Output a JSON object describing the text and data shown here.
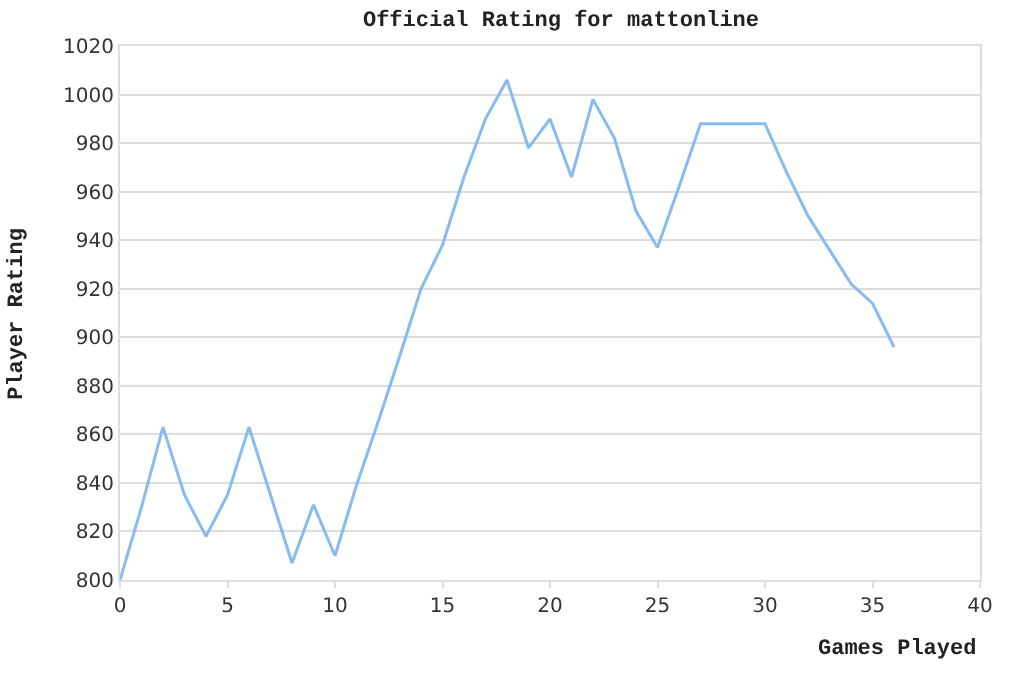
{
  "chart_data": {
    "type": "line",
    "title": "Official Rating for mattonline",
    "xlabel": "Games Played",
    "ylabel": "Player Rating",
    "x": [
      0,
      1,
      2,
      3,
      4,
      5,
      6,
      7,
      8,
      9,
      10,
      11,
      12,
      13,
      14,
      15,
      16,
      17,
      18,
      19,
      20,
      21,
      22,
      23,
      24,
      25,
      26,
      27,
      28,
      29,
      30,
      31,
      32,
      33,
      34,
      35,
      36
    ],
    "series": [
      {
        "color": "#88bbee",
        "values": [
          800,
          830,
          863,
          835,
          818,
          835,
          863,
          835,
          807,
          831,
          810,
          839,
          865,
          892,
          920,
          938,
          966,
          990,
          1006,
          978,
          990,
          966,
          998,
          982,
          952,
          937,
          962,
          988,
          988,
          988,
          988,
          968,
          950,
          936,
          922,
          914,
          896
        ]
      }
    ],
    "xlim": [
      0,
      40
    ],
    "xticks": [
      0,
      5,
      10,
      15,
      20,
      25,
      30,
      35,
      40
    ],
    "ylim": [
      800,
      1020
    ],
    "yticks": [
      800,
      820,
      840,
      860,
      880,
      900,
      920,
      940,
      960,
      980,
      1000,
      1020
    ],
    "grid": "y",
    "marker": "none",
    "line_style": "solid"
  }
}
